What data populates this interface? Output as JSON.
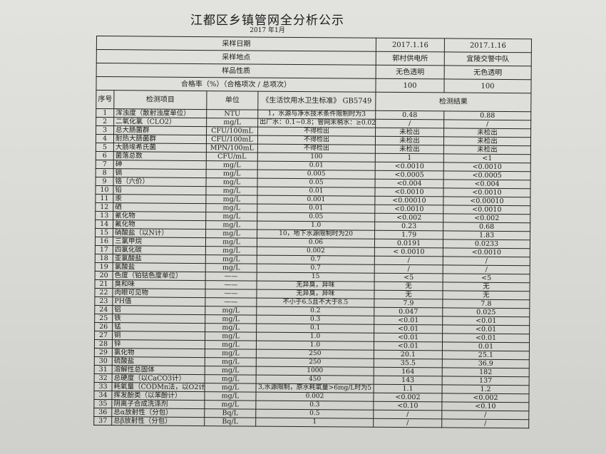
{
  "title": "江都区乡镇管网全分析公示",
  "subtitle": "2017 年1月",
  "meta": [
    {
      "label": "采样日期",
      "v1": "2017.1.16",
      "v2": "2017.1.16"
    },
    {
      "label": "采样地点",
      "v1": "郭村供电所",
      "v2": "宜陵交警中队"
    },
    {
      "label": "样品性质",
      "v1": "无色透明",
      "v2": "无色透明"
    },
    {
      "label": "合格率（%）（合格项次 / 总项次）",
      "v1": "100",
      "v2": "100"
    }
  ],
  "headers": {
    "no": "序号",
    "item": "检测项目",
    "unit": "单位",
    "std": "《生活饮用水卫生标准》 GB5749",
    "result": "检测结果"
  },
  "rows": [
    {
      "no": "1",
      "item": "浑浊度（散射浊度单位）",
      "unit": "NTU",
      "std": "1，水源与净水技术条件限制时为3",
      "r1": "0.48",
      "r2": "0.88"
    },
    {
      "no": "2",
      "item": "二氧化氯（CLO2）",
      "unit": "mg/L",
      "std": "出厂水：0.1~0.8；管网末梢水：≥0.02",
      "r1": "/",
      "r2": "/"
    },
    {
      "no": "3",
      "item": "总大肠菌群",
      "unit": "CFU/100mL",
      "std": "不得检出",
      "r1": "未检出",
      "r2": "未检出"
    },
    {
      "no": "4",
      "item": "耐热大肠菌群",
      "unit": "CFU/100mL",
      "std": "不得检出",
      "r1": "未检出",
      "r2": "未检出"
    },
    {
      "no": "5",
      "item": "大肠埃希氏菌",
      "unit": "MPN/100mL",
      "std": "不得检出",
      "r1": "未检出",
      "r2": "未检出"
    },
    {
      "no": "6",
      "item": "菌落总数",
      "unit": "CFU/mL",
      "std": "100",
      "r1": "1",
      "r2": "<1"
    },
    {
      "no": "7",
      "item": "砷",
      "unit": "mg/L",
      "std": "0.01",
      "r1": "<0.0010",
      "r2": "<0.0010"
    },
    {
      "no": "8",
      "item": "镉",
      "unit": "mg/L",
      "std": "0.005",
      "r1": "<0.0005",
      "r2": "<0.0005"
    },
    {
      "no": "9",
      "item": "铬（六价）",
      "unit": "mg/L",
      "std": "0.05",
      "r1": "<0.004",
      "r2": "<0.004"
    },
    {
      "no": "10",
      "item": "铅",
      "unit": "mg/L",
      "std": "0.01",
      "r1": "<0.0010",
      "r2": "<0.0010"
    },
    {
      "no": "11",
      "item": "汞",
      "unit": "mg/L",
      "std": "0.001",
      "r1": "<0.00010",
      "r2": "<0.00010"
    },
    {
      "no": "12",
      "item": "硒",
      "unit": "mg/L",
      "std": "0.01",
      "r1": "<0.0010",
      "r2": "<0.0010"
    },
    {
      "no": "13",
      "item": "氰化物",
      "unit": "mg/L",
      "std": "0.05",
      "r1": "<0.002",
      "r2": "<0.002"
    },
    {
      "no": "14",
      "item": "氟化物",
      "unit": "mg/L",
      "std": "1.0",
      "r1": "0.23",
      "r2": "0.68"
    },
    {
      "no": "15",
      "item": "硝酸盐（以N计）",
      "unit": "mg/L",
      "std": "10，地下水源限制时为20",
      "r1": "1.79",
      "r2": "1.83"
    },
    {
      "no": "16",
      "item": "三氯甲烷",
      "unit": "mg/L",
      "std": "0.06",
      "r1": "0.0191",
      "r2": "0.0233"
    },
    {
      "no": "17",
      "item": "四氯化碳",
      "unit": "mg/L",
      "std": "0.002",
      "r1": "< 0.0010",
      "r2": "<0.0010"
    },
    {
      "no": "18",
      "item": "亚氯酸盐",
      "unit": "mg/L",
      "std": "0.7",
      "r1": "/",
      "r2": "/"
    },
    {
      "no": "19",
      "item": "氯酸盐",
      "unit": "mg/L",
      "std": "0.7",
      "r1": "/",
      "r2": "/"
    },
    {
      "no": "20",
      "item": "色度（铂钴色度单位）",
      "unit": "——",
      "std": "15",
      "r1": "<5",
      "r2": "<5"
    },
    {
      "no": "21",
      "item": "臭和味",
      "unit": "——",
      "std": "无异臭，异味",
      "r1": "无",
      "r2": "无"
    },
    {
      "no": "22",
      "item": "肉眼可见物",
      "unit": "——",
      "std": "无异臭，异味",
      "r1": "无",
      "r2": "无"
    },
    {
      "no": "23",
      "item": "PH值",
      "unit": "——",
      "std": "不小于6.5且不大于8.5",
      "r1": "7.9",
      "r2": "7.8"
    },
    {
      "no": "24",
      "item": "铝",
      "unit": "mg/L",
      "std": "0.2",
      "r1": "0.047",
      "r2": "0.025"
    },
    {
      "no": "25",
      "item": "铁",
      "unit": "mg/L",
      "std": "0.3",
      "r1": "<0.01",
      "r2": "<0.01"
    },
    {
      "no": "26",
      "item": "锰",
      "unit": "mg/L",
      "std": "0.1",
      "r1": "<0.01",
      "r2": "<0.01"
    },
    {
      "no": "27",
      "item": "铜",
      "unit": "mg/L",
      "std": "1.0",
      "r1": "<0.01",
      "r2": "<0.01"
    },
    {
      "no": "28",
      "item": "锌",
      "unit": "mg/L",
      "std": "1.0",
      "r1": "<0.01",
      "r2": "0.01"
    },
    {
      "no": "29",
      "item": "氯化物",
      "unit": "mg/L",
      "std": "250",
      "r1": "20.1",
      "r2": "25.1"
    },
    {
      "no": "30",
      "item": "硫酸盐",
      "unit": "mg/L",
      "std": "250",
      "r1": "35.5",
      "r2": "36.9"
    },
    {
      "no": "31",
      "item": "溶解性总固体",
      "unit": "mg/L",
      "std": "1000",
      "r1": "164",
      "r2": "182"
    },
    {
      "no": "32",
      "item": "总硬度（以CaCO3计）",
      "unit": "mg/L",
      "std": "450",
      "r1": "143",
      "r2": "137"
    },
    {
      "no": "33",
      "item": "耗氧量（CODMn法，以O2计）",
      "unit": "mg/L",
      "std": "3,水源限制，原水耗氧量>6mg/L时为5",
      "r1": "1.1",
      "r2": "1.2"
    },
    {
      "no": "34",
      "item": "挥发酚类（以苯酚计）",
      "unit": "mg/L",
      "std": "0.002",
      "r1": "<0.002",
      "r2": "<0.002"
    },
    {
      "no": "35",
      "item": "阴离子合成洗涤剂",
      "unit": "mg/L",
      "std": "0.3",
      "r1": "<0.10",
      "r2": "<0.10"
    },
    {
      "no": "36",
      "item": "总α放射性（分包）",
      "unit": "Bq/L",
      "std": "0.5",
      "r1": "/",
      "r2": "/"
    },
    {
      "no": "37",
      "item": "总β放射性（分包）",
      "unit": "Bq/L",
      "std": "1",
      "r1": "/",
      "r2": "/"
    }
  ]
}
